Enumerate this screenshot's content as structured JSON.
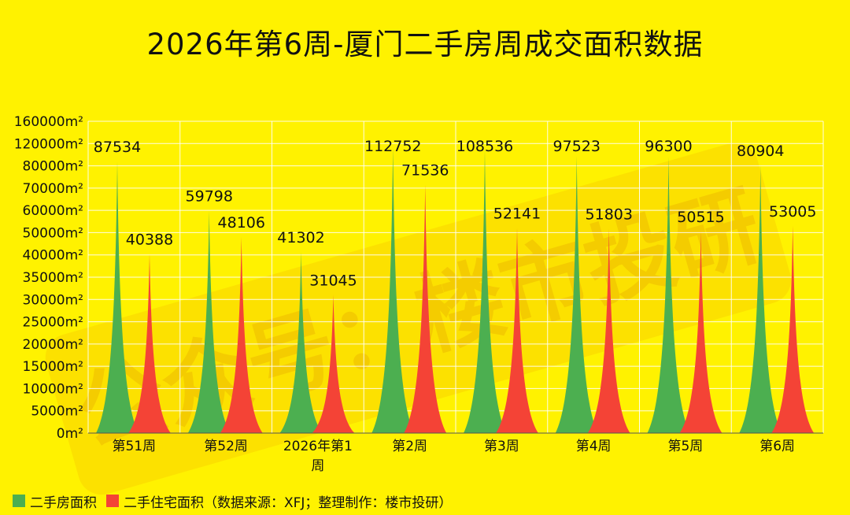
{
  "chart_data": {
    "type": "area",
    "title": "2026年第6周-厦门二手房周成交面积数据",
    "categories": [
      "第51周",
      "第52周",
      "2026年第1周",
      "第2周",
      "第3周",
      "第4周",
      "第5周",
      "第6周"
    ],
    "series": [
      {
        "name": "二手房面积",
        "values": [
          87534,
          59798,
          41302,
          112752,
          108536,
          97523,
          96300,
          80904
        ],
        "color": "#4caf50"
      },
      {
        "name": "二手住宅面积（数据来源：XFJ；整理制作：楼市投研）",
        "values": [
          40388,
          48106,
          31045,
          71536,
          52141,
          51803,
          50515,
          53005
        ],
        "color": "#f44336"
      }
    ],
    "y_tick_labels": [
      "0m²",
      "5000m²",
      "10000m²",
      "15000m²",
      "20000m²",
      "25000m²",
      "30000m²",
      "35000m²",
      "40000m²",
      "50000m²",
      "60000m²",
      "70000m²",
      "80000m²",
      "120000m²",
      "160000m²"
    ],
    "y_tick_values": [
      0,
      5000,
      10000,
      15000,
      20000,
      25000,
      30000,
      35000,
      40000,
      50000,
      60000,
      70000,
      80000,
      120000,
      160000
    ],
    "grid": true,
    "legend_position": "bottom-left"
  },
  "watermark": "公众号：楼市投研"
}
